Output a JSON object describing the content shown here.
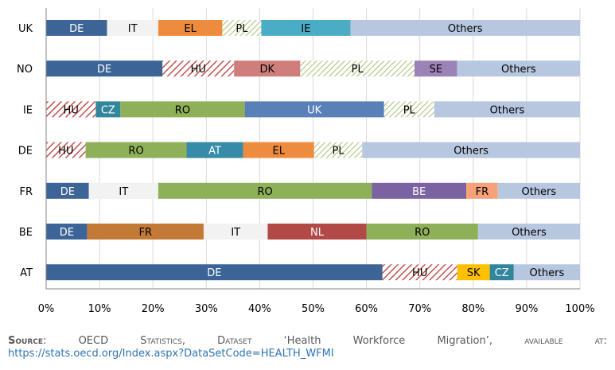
{
  "chart_data": {
    "type": "bar",
    "orientation": "horizontal",
    "stacked": true,
    "percent_stacked": true,
    "grid": "vertical",
    "x_ticks": [
      "0%",
      "10%",
      "20%",
      "30%",
      "40%",
      "50%",
      "60%",
      "70%",
      "80%",
      "90%",
      "100%"
    ],
    "xlim": [
      0,
      100
    ],
    "categories": [
      "UK",
      "NO",
      "IE",
      "DE",
      "FR",
      "BE",
      "AT"
    ],
    "colors": {
      "DE": "#3c6496",
      "IT": "#f2f2f2",
      "EL": "#ed8b3f",
      "PL": "#9bbb59",
      "IE": "#4bacc6",
      "Others": "#b8c7e0",
      "HU": "#c0504d",
      "DK": "#d07e7c",
      "SE": "#9b83b8",
      "CZ": "#31859c",
      "RO": "#8eb058",
      "UK": "#5a80b8",
      "AT": "#358ba8",
      "BE": "#7b62a1",
      "FR_in_FR": "#f5a278",
      "FR": "#c47a37",
      "NL": "#b24946",
      "SK": "#ffc000"
    },
    "hatched": [
      "HU",
      "PL"
    ],
    "rows": [
      {
        "country": "UK",
        "segments": [
          {
            "label": "DE",
            "value": 11.4
          },
          {
            "label": "IT",
            "value": 9.6
          },
          {
            "label": "EL",
            "value": 12.0
          },
          {
            "label": "PL",
            "value": 7.3
          },
          {
            "label": "IE",
            "value": 16.7
          },
          {
            "label": "Others",
            "value": 43.0
          }
        ]
      },
      {
        "country": "NO",
        "segments": [
          {
            "label": "DE",
            "value": 21.8
          },
          {
            "label": "HU",
            "value": 13.4
          },
          {
            "label": "DK",
            "value": 12.4
          },
          {
            "label": "PL",
            "value": 21.4
          },
          {
            "label": "SE",
            "value": 8.0
          },
          {
            "label": "Others",
            "value": 23.0
          }
        ]
      },
      {
        "country": "IE",
        "segments": [
          {
            "label": "HU",
            "value": 9.3
          },
          {
            "label": "CZ",
            "value": 4.6
          },
          {
            "label": "RO",
            "value": 23.3
          },
          {
            "label": "UK",
            "value": 26.1
          },
          {
            "label": "PL",
            "value": 9.4
          },
          {
            "label": "Others",
            "value": 27.3
          }
        ]
      },
      {
        "country": "DE",
        "segments": [
          {
            "label": "HU",
            "value": 7.4
          },
          {
            "label": "RO",
            "value": 18.9
          },
          {
            "label": "AT",
            "value": 10.6
          },
          {
            "label": "EL",
            "value": 13.3
          },
          {
            "label": "PL",
            "value": 9.0
          },
          {
            "label": "Others",
            "value": 40.8
          }
        ]
      },
      {
        "country": "FR",
        "segments": [
          {
            "label": "DE",
            "value": 8.0
          },
          {
            "label": "IT",
            "value": 13.0
          },
          {
            "label": "RO",
            "value": 40.0
          },
          {
            "label": "BE",
            "value": 17.7
          },
          {
            "label": "FR",
            "value": 5.9,
            "color_key": "FR_in_FR"
          },
          {
            "label": "Others",
            "value": 15.4
          }
        ]
      },
      {
        "country": "BE",
        "segments": [
          {
            "label": "DE",
            "value": 7.7
          },
          {
            "label": "FR",
            "value": 21.8
          },
          {
            "label": "IT",
            "value": 12.0
          },
          {
            "label": "NL",
            "value": 18.5
          },
          {
            "label": "RO",
            "value": 20.9
          },
          {
            "label": "Others",
            "value": 19.1
          }
        ]
      },
      {
        "country": "AT",
        "segments": [
          {
            "label": "DE",
            "value": 63.0
          },
          {
            "label": "HU",
            "value": 14.0
          },
          {
            "label": "SK",
            "value": 6.1
          },
          {
            "label": "CZ",
            "value": 4.5
          },
          {
            "label": "Others",
            "value": 12.4
          }
        ]
      }
    ]
  },
  "source": {
    "label": "Source",
    "text_parts": [
      ": ",
      "OECD",
      "Statistics,",
      "Dataset",
      "‘Health",
      "Workforce",
      "Migration’,",
      "available",
      "at:"
    ],
    "url": "https://stats.oecd.org/Index.aspx?DataSetCode=HEALTH_WFMI"
  }
}
